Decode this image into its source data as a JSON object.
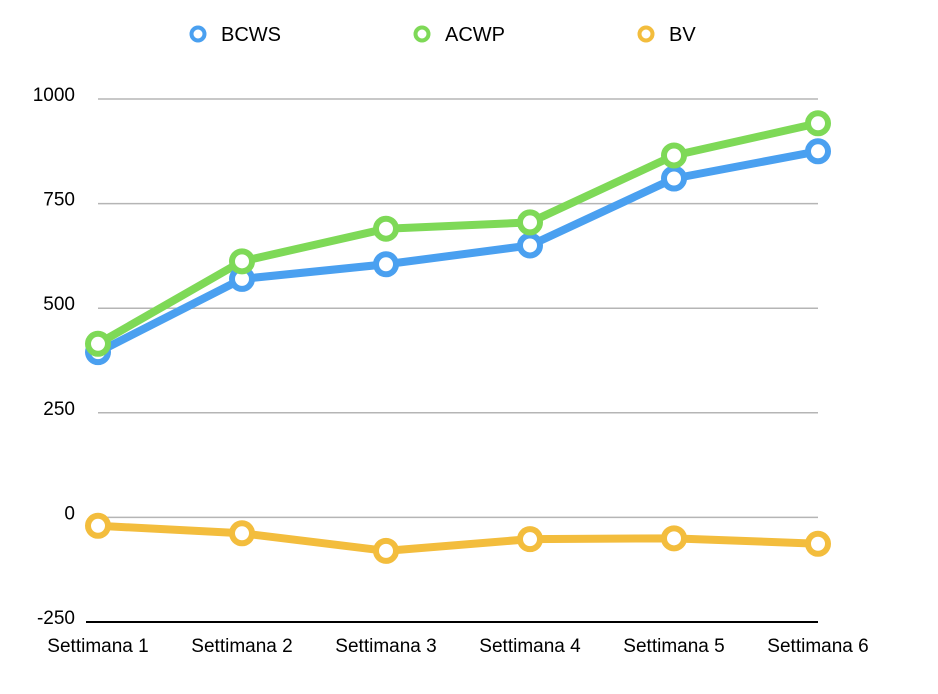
{
  "chart_data": {
    "type": "line",
    "title": "",
    "xlabel": "",
    "ylabel": "",
    "categories": [
      "Settimana 1",
      "Settimana 2",
      "Settimana 3",
      "Settimana 4",
      "Settimana 5",
      "Settimana 6"
    ],
    "ylim": [
      -250,
      1000
    ],
    "yticks": [
      -250,
      0,
      250,
      500,
      750,
      1000
    ],
    "ytick_labels": [
      "-250",
      "0",
      "250",
      "500",
      "750",
      "1000"
    ],
    "grid": true,
    "legend": "top",
    "series": [
      {
        "name": "BCWS",
        "color": "#4aa0f0",
        "values": [
          395,
          570,
          605,
          650,
          810,
          875
        ]
      },
      {
        "name": "ACWP",
        "color": "#7ed957",
        "values": [
          415,
          612,
          690,
          705,
          865,
          942
        ]
      },
      {
        "name": "BV",
        "color": "#f3bd3d",
        "values": [
          -20,
          -38,
          -80,
          -52,
          -50,
          -63
        ]
      }
    ]
  }
}
